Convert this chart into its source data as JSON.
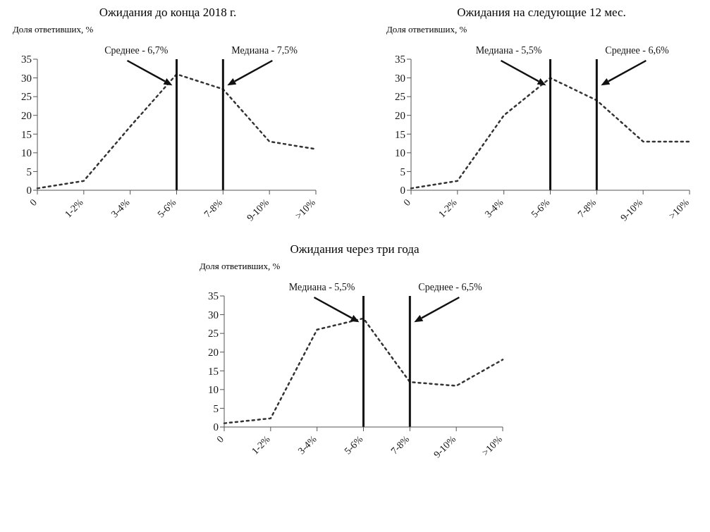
{
  "chart_data": [
    {
      "type": "line",
      "title": "Ожидания до конца 2018 г.",
      "ylabel": "Доля ответивших, %",
      "categories": [
        "0",
        "1-2%",
        "3-4%",
        "5-6%",
        "7-8%",
        "9-10%",
        ">10%"
      ],
      "series": [
        {
          "color": "#333333",
          "values": [
            0.5,
            2.5,
            17,
            31,
            27,
            13,
            11
          ]
        }
      ],
      "ylim": [
        0,
        35
      ],
      "yticks": [
        0,
        5,
        10,
        15,
        20,
        25,
        30,
        35
      ],
      "grid": false,
      "legend": false,
      "marker": "none",
      "line_style": "dotted",
      "ref_lines": [
        {
          "axis": "x",
          "value": "5-6%",
          "label": "Среднее - 6,7%",
          "color": "#111111"
        },
        {
          "axis": "x",
          "value": "7-8%",
          "label": "Медиана - 7,5%",
          "color": "#111111"
        }
      ]
    },
    {
      "type": "line",
      "title": "Ожидания на следующие 12 мес.",
      "ylabel": "Доля ответивших, %",
      "categories": [
        "0",
        "1-2%",
        "3-4%",
        "5-6%",
        "7-8%",
        "9-10%",
        ">10%"
      ],
      "series": [
        {
          "color": "#333333",
          "values": [
            0.5,
            2.5,
            20,
            30,
            24,
            13,
            13
          ]
        }
      ],
      "ylim": [
        0,
        35
      ],
      "yticks": [
        0,
        5,
        10,
        15,
        20,
        25,
        30,
        35
      ],
      "grid": false,
      "legend": false,
      "marker": "none",
      "line_style": "dotted",
      "ref_lines": [
        {
          "axis": "x",
          "value": "5-6%",
          "label": "Медиана - 5,5%",
          "color": "#111111"
        },
        {
          "axis": "x",
          "value": "7-8%",
          "label": "Среднее - 6,6%",
          "color": "#111111"
        }
      ]
    },
    {
      "type": "line",
      "title": "Ожидания через три года",
      "ylabel": "Доля ответивших, %",
      "categories": [
        "0",
        "1-2%",
        "3-4%",
        "5-6%",
        "7-8%",
        "9-10%",
        ">10%"
      ],
      "series": [
        {
          "color": "#333333",
          "values": [
            1,
            2.3,
            26,
            29,
            12,
            11,
            18
          ]
        }
      ],
      "ylim": [
        0,
        35
      ],
      "yticks": [
        0,
        5,
        10,
        15,
        20,
        25,
        30,
        35
      ],
      "grid": false,
      "legend": false,
      "marker": "none",
      "line_style": "dotted",
      "ref_lines": [
        {
          "axis": "x",
          "value": "5-6%",
          "label": "Медиана - 5,5%",
          "color": "#111111"
        },
        {
          "axis": "x",
          "value": "7-8%",
          "label": "Среднее - 6,5%",
          "color": "#111111"
        }
      ]
    }
  ]
}
